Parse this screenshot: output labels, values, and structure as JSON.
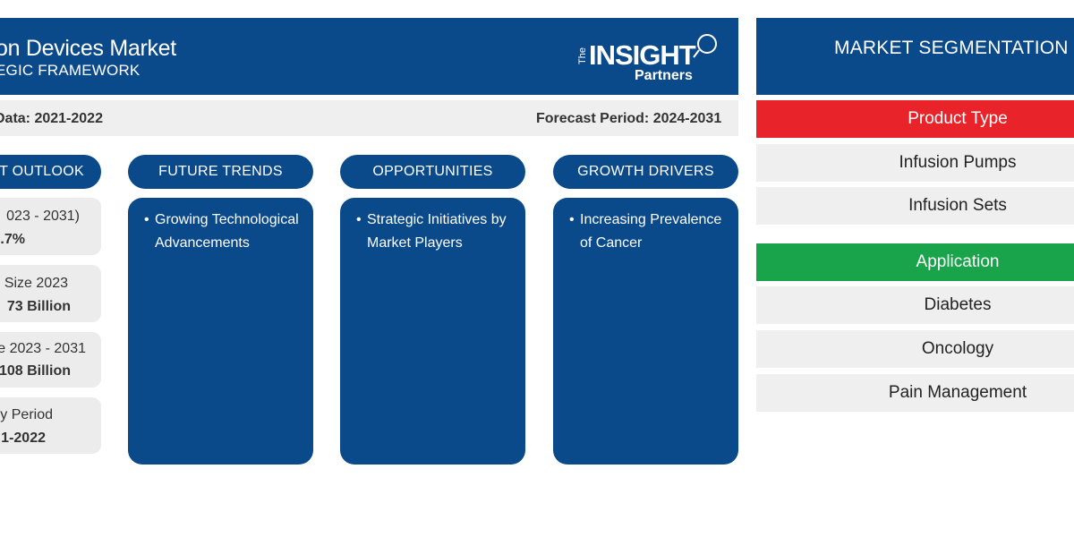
{
  "header": {
    "title": "on Devices Market",
    "subtitle": "EGIC FRAMEWORK",
    "logo_line1": "The",
    "logo_line2": "INSIGHT",
    "logo_line3": "Partners"
  },
  "infobar": {
    "historical": "Data: 2021-2022",
    "forecast": "Forecast Period: 2024-2031"
  },
  "columns": {
    "outlook": "T OUTLOOK",
    "trends": "FUTURE TRENDS",
    "opportunities": "OPPORTUNITIES",
    "drivers": "GROWTH DRIVERS"
  },
  "outlook_cards": [
    {
      "line1": "023 - 2031)",
      "line2": ".7%"
    },
    {
      "line1": "Size 2023",
      "line2": "73 Billion"
    },
    {
      "line1": "e 2023 - 2031",
      "line2": "108 Billion"
    },
    {
      "line1": "y Period",
      "line2": "1-2022"
    }
  ],
  "trends": {
    "items": [
      "Growing Technological Advancements"
    ]
  },
  "opportunities": {
    "items": [
      "Strategic Initiatives by Market Players"
    ]
  },
  "drivers": {
    "items": [
      "Increasing Prevalence of Cancer"
    ]
  },
  "segmentation": {
    "title": "MARKET SEGMENTATION",
    "groups": [
      {
        "label": "Product Type",
        "color": "#e8242a",
        "items": [
          "Infusion Pumps",
          "Infusion Sets"
        ]
      },
      {
        "label": "Application",
        "color": "#19a34a",
        "items": [
          "Diabetes",
          "Oncology",
          "Pain Management"
        ]
      }
    ]
  },
  "colors": {
    "navy": "#0b4a8a",
    "red": "#e8242a",
    "green": "#19a34a",
    "light_gray": "#efefef"
  }
}
